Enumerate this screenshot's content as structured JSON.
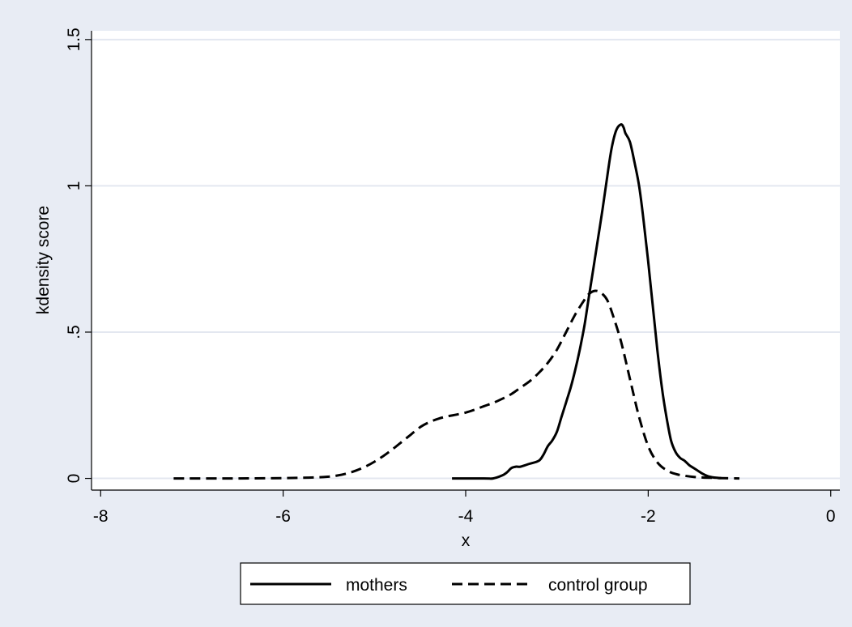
{
  "colors": {
    "background": "#e8ecf4",
    "plot_area": "#ffffff",
    "gridline": "#e3e7f0",
    "line": "#000000"
  },
  "chart_data": {
    "type": "line",
    "title": "",
    "xlabel": "x",
    "ylabel": "kdensity score",
    "xlim": [
      -8.1,
      0.1
    ],
    "ylim": [
      -0.04,
      1.53
    ],
    "x_ticks": [
      -8,
      -6,
      -4,
      -2,
      0
    ],
    "x_tick_labels": [
      "-8",
      "-6",
      "-4",
      "-2",
      "0"
    ],
    "y_ticks": [
      0,
      0.5,
      1,
      1.5
    ],
    "y_tick_labels": [
      "0",
      ".5",
      "1",
      "1.5"
    ],
    "grid": "horizontal",
    "legend_position": "bottom",
    "series": [
      {
        "name": "mothers",
        "style": "solid",
        "x": [
          -4.15,
          -3.8,
          -3.7,
          -3.6,
          -3.55,
          -3.5,
          -3.45,
          -3.4,
          -3.3,
          -3.2,
          -3.15,
          -3.1,
          -3.05,
          -3.0,
          -2.95,
          -2.9,
          -2.85,
          -2.8,
          -2.75,
          -2.7,
          -2.65,
          -2.6,
          -2.55,
          -2.5,
          -2.45,
          -2.4,
          -2.35,
          -2.3,
          -2.27,
          -2.25,
          -2.2,
          -2.15,
          -2.1,
          -2.05,
          -2.0,
          -1.95,
          -1.9,
          -1.85,
          -1.8,
          -1.75,
          -1.7,
          -1.65,
          -1.6,
          -1.55,
          -1.5,
          -1.45,
          -1.4,
          -1.35,
          -1.3,
          -1.25,
          -1.2
        ],
        "y": [
          0.0,
          0.0,
          0.0,
          0.01,
          0.02,
          0.035,
          0.04,
          0.04,
          0.05,
          0.06,
          0.08,
          0.11,
          0.13,
          0.16,
          0.21,
          0.26,
          0.31,
          0.37,
          0.44,
          0.52,
          0.62,
          0.72,
          0.82,
          0.92,
          1.03,
          1.13,
          1.19,
          1.21,
          1.2,
          1.18,
          1.15,
          1.08,
          1.0,
          0.88,
          0.74,
          0.59,
          0.44,
          0.31,
          0.21,
          0.13,
          0.09,
          0.07,
          0.06,
          0.045,
          0.035,
          0.025,
          0.015,
          0.008,
          0.004,
          0.002,
          0.001
        ]
      },
      {
        "name": "control group",
        "style": "dashed",
        "x": [
          -7.2,
          -6.5,
          -6.0,
          -5.8,
          -5.6,
          -5.5,
          -5.4,
          -5.3,
          -5.2,
          -5.1,
          -5.0,
          -4.9,
          -4.8,
          -4.7,
          -4.6,
          -4.5,
          -4.4,
          -4.3,
          -4.2,
          -4.1,
          -4.0,
          -3.9,
          -3.8,
          -3.7,
          -3.6,
          -3.5,
          -3.4,
          -3.3,
          -3.2,
          -3.1,
          -3.0,
          -2.9,
          -2.8,
          -2.7,
          -2.65,
          -2.6,
          -2.55,
          -2.5,
          -2.45,
          -2.4,
          -2.3,
          -2.2,
          -2.1,
          -2.0,
          -1.9,
          -1.8,
          -1.7,
          -1.6,
          -1.5,
          -1.4,
          -1.3,
          -1.2,
          -1.0
        ],
        "y": [
          0.0,
          0.0,
          0.001,
          0.002,
          0.004,
          0.006,
          0.01,
          0.017,
          0.027,
          0.04,
          0.057,
          0.077,
          0.1,
          0.125,
          0.15,
          0.175,
          0.192,
          0.204,
          0.212,
          0.218,
          0.225,
          0.235,
          0.247,
          0.258,
          0.272,
          0.288,
          0.31,
          0.332,
          0.36,
          0.395,
          0.44,
          0.5,
          0.56,
          0.61,
          0.63,
          0.64,
          0.64,
          0.63,
          0.61,
          0.57,
          0.47,
          0.34,
          0.21,
          0.11,
          0.055,
          0.028,
          0.015,
          0.009,
          0.005,
          0.003,
          0.002,
          0.001,
          0.0
        ]
      }
    ]
  }
}
